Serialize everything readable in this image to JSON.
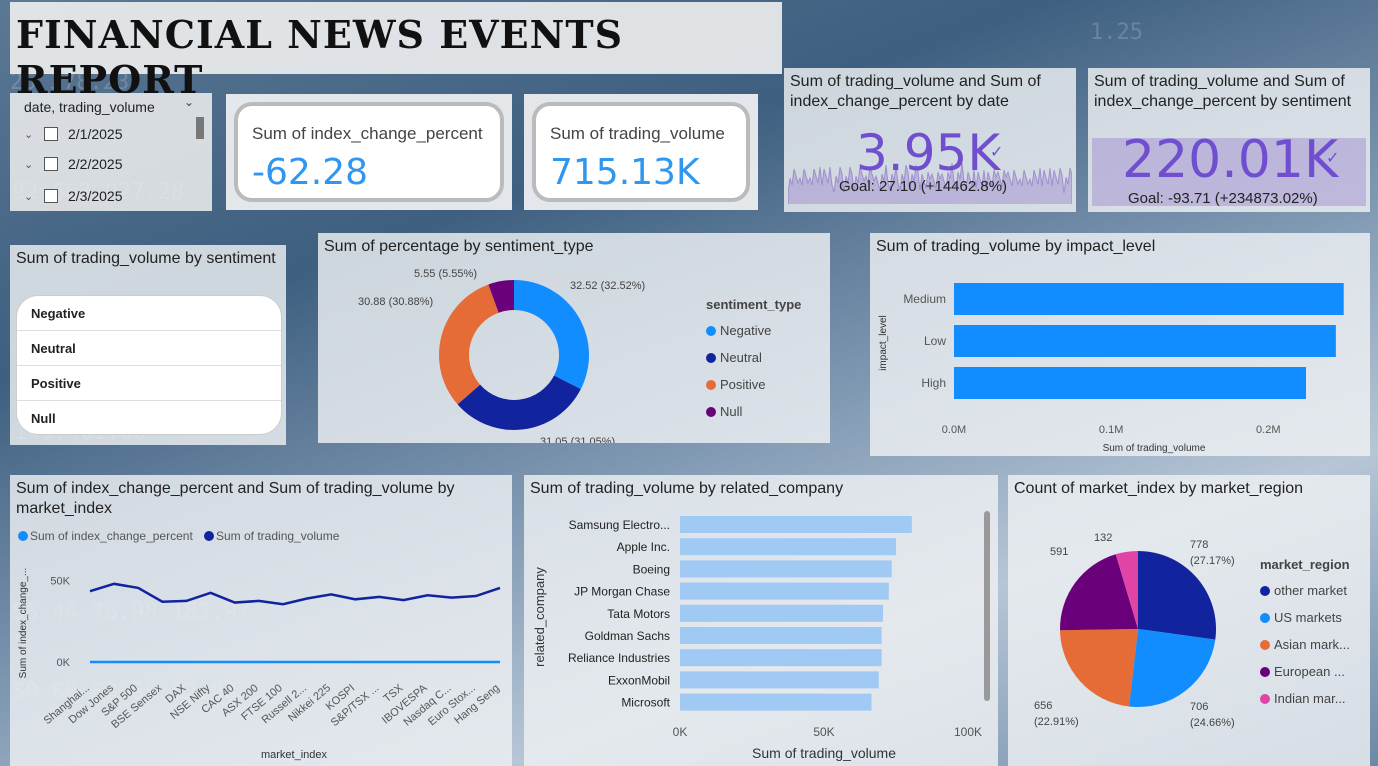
{
  "report_title": "FINANCIAL NEWS EVENTS REPORT",
  "date_slicer": {
    "header": "date, trading_volume",
    "items": [
      "2/1/2025",
      "2/2/2025",
      "2/3/2025"
    ]
  },
  "cards": {
    "index_change": {
      "label": "Sum of index_change_percent",
      "value": "-62.28"
    },
    "trading_volume": {
      "label": "Sum of trading_volume",
      "value": "715.13K"
    }
  },
  "kpi_date": {
    "title": "Sum of trading_volume and Sum of index_change_percent by date",
    "value": "3.95K",
    "goal": "Goal: 27.10 (+14462.8%)"
  },
  "kpi_sentiment": {
    "title": "Sum of trading_volume and Sum of index_change_percent by sentiment",
    "value": "220.01K",
    "goal": "Goal: -93.71 (+234873.02%)"
  },
  "sentiment_table": {
    "title": "Sum of trading_volume by sentiment",
    "rows": [
      "Negative",
      "Neutral",
      "Positive",
      "Null"
    ]
  },
  "donut": {
    "title": "Sum of percentage by sentiment_type",
    "legend_title": "sentiment_type",
    "chart_data": {
      "type": "pie",
      "categories": [
        "Negative",
        "Neutral",
        "Positive",
        "Null"
      ],
      "values": [
        32.52,
        31.05,
        30.88,
        5.55
      ],
      "labels": [
        "32.52 (32.52%)",
        "31.05 (31.05%)",
        "30.88 (30.88%)",
        "5.55 (5.55%)"
      ],
      "colors": [
        "#118dff",
        "#12239e",
        "#e66c37",
        "#6b007b"
      ]
    }
  },
  "impact": {
    "title": "Sum of trading_volume by impact_level",
    "ylabel": "impact_level",
    "xlabel": "Sum of trading_volume",
    "ticks": [
      "0.0M",
      "0.1M",
      "0.2M"
    ],
    "chart_data": {
      "type": "bar",
      "categories": [
        "Medium",
        "Low",
        "High"
      ],
      "values": [
        248000,
        243000,
        224000
      ],
      "xlim": [
        0,
        252000
      ],
      "color": "#118dff"
    }
  },
  "combo": {
    "title": "Sum of index_change_percent and Sum of trading_volume by market_index",
    "legend": [
      "Sum of index_change_percent",
      "Sum of trading_volume"
    ],
    "ylabel": "Sum of index_change_...",
    "xlabel": "market_index",
    "yticks": [
      "50K",
      "0K"
    ],
    "chart_data": {
      "type": "line",
      "categories": [
        "Shanghai...",
        "Dow Jones",
        "S&P 500",
        "BSE Sensex",
        "DAX",
        "NSE Nifty",
        "CAC 40",
        "ASX 200",
        "FTSE 100",
        "Russell 2...",
        "Nikkei 225",
        "KOSPI",
        "S&P/TSX ...",
        "TSX",
        "IBOVESPA",
        "Nasdaq C...",
        "Euro Stox...",
        "Hang Seng"
      ],
      "series": [
        {
          "name": "Sum of index_change_percent",
          "values": [
            -5,
            3,
            -8,
            2,
            -6,
            4,
            -3,
            1,
            -9,
            5,
            -4,
            2,
            -7,
            3,
            -2,
            1,
            -6,
            4
          ],
          "color": "#118dff"
        },
        {
          "name": "Sum of trading_volume",
          "values": [
            43500,
            48000,
            45500,
            37000,
            37500,
            42500,
            36500,
            37500,
            35500,
            39000,
            41500,
            38500,
            40000,
            38000,
            41000,
            39500,
            40500,
            45500
          ],
          "color": "#12239e"
        }
      ],
      "ylim": [
        -8000,
        78000
      ]
    }
  },
  "company": {
    "title": "Sum of trading_volume by related_company",
    "ylabel": "related_company",
    "xlabel": "Sum of trading_volume",
    "ticks": [
      "0K",
      "50K",
      "100K"
    ],
    "chart_data": {
      "type": "bar",
      "categories": [
        "Samsung Electro...",
        "Apple Inc.",
        "Boeing",
        "JP Morgan Chase",
        "Tata Motors",
        "Goldman Sachs",
        "Reliance Industries",
        "ExxonMobil",
        "Microsoft"
      ],
      "values": [
        80500,
        75000,
        73500,
        72500,
        70500,
        70000,
        70000,
        69000,
        66500
      ],
      "xlim": [
        0,
        100000
      ],
      "color": "#a0c9f4"
    }
  },
  "region": {
    "title": "Count of market_index by market_region",
    "legend_title": "market_region",
    "chart_data": {
      "type": "pie",
      "categories": [
        "other market",
        "US markets",
        "Asian mark...",
        "European ...",
        "Indian mar..."
      ],
      "values": [
        778,
        706,
        656,
        591,
        132
      ],
      "labels": [
        "778 (27.17%)",
        "706 (24.66%)",
        "656 (22.91%)",
        "591 (20.64%)",
        "132 (4.61%)"
      ],
      "colors": [
        "#12239e",
        "#118dff",
        "#e66c37",
        "#6b007b",
        "#e044a7"
      ]
    }
  }
}
